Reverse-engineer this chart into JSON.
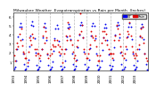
{
  "title": "Milwaukee Weather  Evapotranspiration vs Rain per Month  (Inches)",
  "legend_labels": [
    "ET",
    "Rain"
  ],
  "legend_colors": [
    "#0000ee",
    "#ee0000"
  ],
  "background_color": "#ffffff",
  "plot_bg": "#ffffff",
  "ylim": [
    0,
    6.5
  ],
  "ytick_vals": [
    1,
    2,
    3,
    4,
    5,
    6
  ],
  "ytick_labels": [
    "1",
    "2",
    "3",
    "4",
    "5",
    "6"
  ],
  "years": [
    1993,
    1994,
    1995,
    1996,
    1997,
    1998,
    1999,
    2000,
    2001,
    2002,
    2003
  ],
  "months_per_year": 12,
  "et_data": [
    0.25,
    0.4,
    1.1,
    2.4,
    3.8,
    4.9,
    5.3,
    4.9,
    3.5,
    1.9,
    0.7,
    0.15,
    0.25,
    0.5,
    1.2,
    2.7,
    3.9,
    5.1,
    5.5,
    5.0,
    3.6,
    2.0,
    0.65,
    0.15,
    0.25,
    0.45,
    1.1,
    2.4,
    3.7,
    4.9,
    5.3,
    4.8,
    3.4,
    1.8,
    0.65,
    0.15,
    0.2,
    0.4,
    1.0,
    2.2,
    3.6,
    4.7,
    5.1,
    4.7,
    3.3,
    1.7,
    0.55,
    0.1,
    0.25,
    0.45,
    1.1,
    2.4,
    3.8,
    4.8,
    5.2,
    4.9,
    3.5,
    1.9,
    0.75,
    0.15,
    0.25,
    0.5,
    1.2,
    2.6,
    4.0,
    5.1,
    5.4,
    5.1,
    3.7,
    2.1,
    0.75,
    0.15,
    0.25,
    0.45,
    1.2,
    2.5,
    3.9,
    5.0,
    5.3,
    5.0,
    3.6,
    1.9,
    0.65,
    0.15,
    0.25,
    0.45,
    1.1,
    2.3,
    3.7,
    4.8,
    5.2,
    4.8,
    3.4,
    1.8,
    0.65,
    0.15,
    0.25,
    0.5,
    1.2,
    2.6,
    4.0,
    5.0,
    5.4,
    5.1,
    3.7,
    2.0,
    0.75,
    0.15,
    0.25,
    0.45,
    1.2,
    2.4,
    3.8,
    4.9,
    5.3,
    4.9,
    3.5,
    1.9,
    0.65,
    0.15,
    0.25,
    0.45,
    1.1,
    2.4,
    3.8,
    4.8,
    5.2,
    4.9,
    3.5,
    1.9,
    0.75,
    0.15
  ],
  "rain_data": [
    1.7,
    1.1,
    2.4,
    3.1,
    2.7,
    4.1,
    3.4,
    4.7,
    2.8,
    2.1,
    1.9,
    1.4,
    1.4,
    0.9,
    2.1,
    3.7,
    3.4,
    2.9,
    4.1,
    3.7,
    2.4,
    1.7,
    2.4,
    1.9,
    1.9,
    1.4,
    1.7,
    2.4,
    3.9,
    4.9,
    3.1,
    4.4,
    3.7,
    1.9,
    1.4,
    1.7,
    2.4,
    1.9,
    2.9,
    2.7,
    3.4,
    2.7,
    3.4,
    2.9,
    2.1,
    2.7,
    1.9,
    2.4,
    0.9,
    1.9,
    2.4,
    3.9,
    3.4,
    5.4,
    4.7,
    3.9,
    3.4,
    2.9,
    2.1,
    1.4,
    1.7,
    1.1,
    2.7,
    3.4,
    4.1,
    6.4,
    4.4,
    5.1,
    3.7,
    2.4,
    1.9,
    1.4,
    1.4,
    1.9,
    2.4,
    2.9,
    4.4,
    3.9,
    3.7,
    3.4,
    3.9,
    2.7,
    1.7,
    1.1,
    1.1,
    1.7,
    3.1,
    4.4,
    3.7,
    4.4,
    3.4,
    4.1,
    2.9,
    2.4,
    1.9,
    1.9,
    1.9,
    1.4,
    1.9,
    3.4,
    3.9,
    5.1,
    4.7,
    3.4,
    4.1,
    2.7,
    2.1,
    1.7,
    1.4,
    1.9,
    2.7,
    3.7,
    4.4,
    4.1,
    5.4,
    3.9,
    2.7,
    2.1,
    1.7,
    1.4,
    1.9,
    1.7,
    2.4,
    2.9,
    3.9,
    4.7,
    3.7,
    4.9,
    3.1,
    1.9,
    1.4,
    1.1
  ],
  "dot_size": 1.8,
  "vline_color": "#bbbbbb",
  "et_color": "#0000ee",
  "rain_color": "#dd0000",
  "black_color": "#000000",
  "tick_fontsize": 3.0,
  "title_fontsize": 3.2,
  "legend_fontsize": 2.8
}
